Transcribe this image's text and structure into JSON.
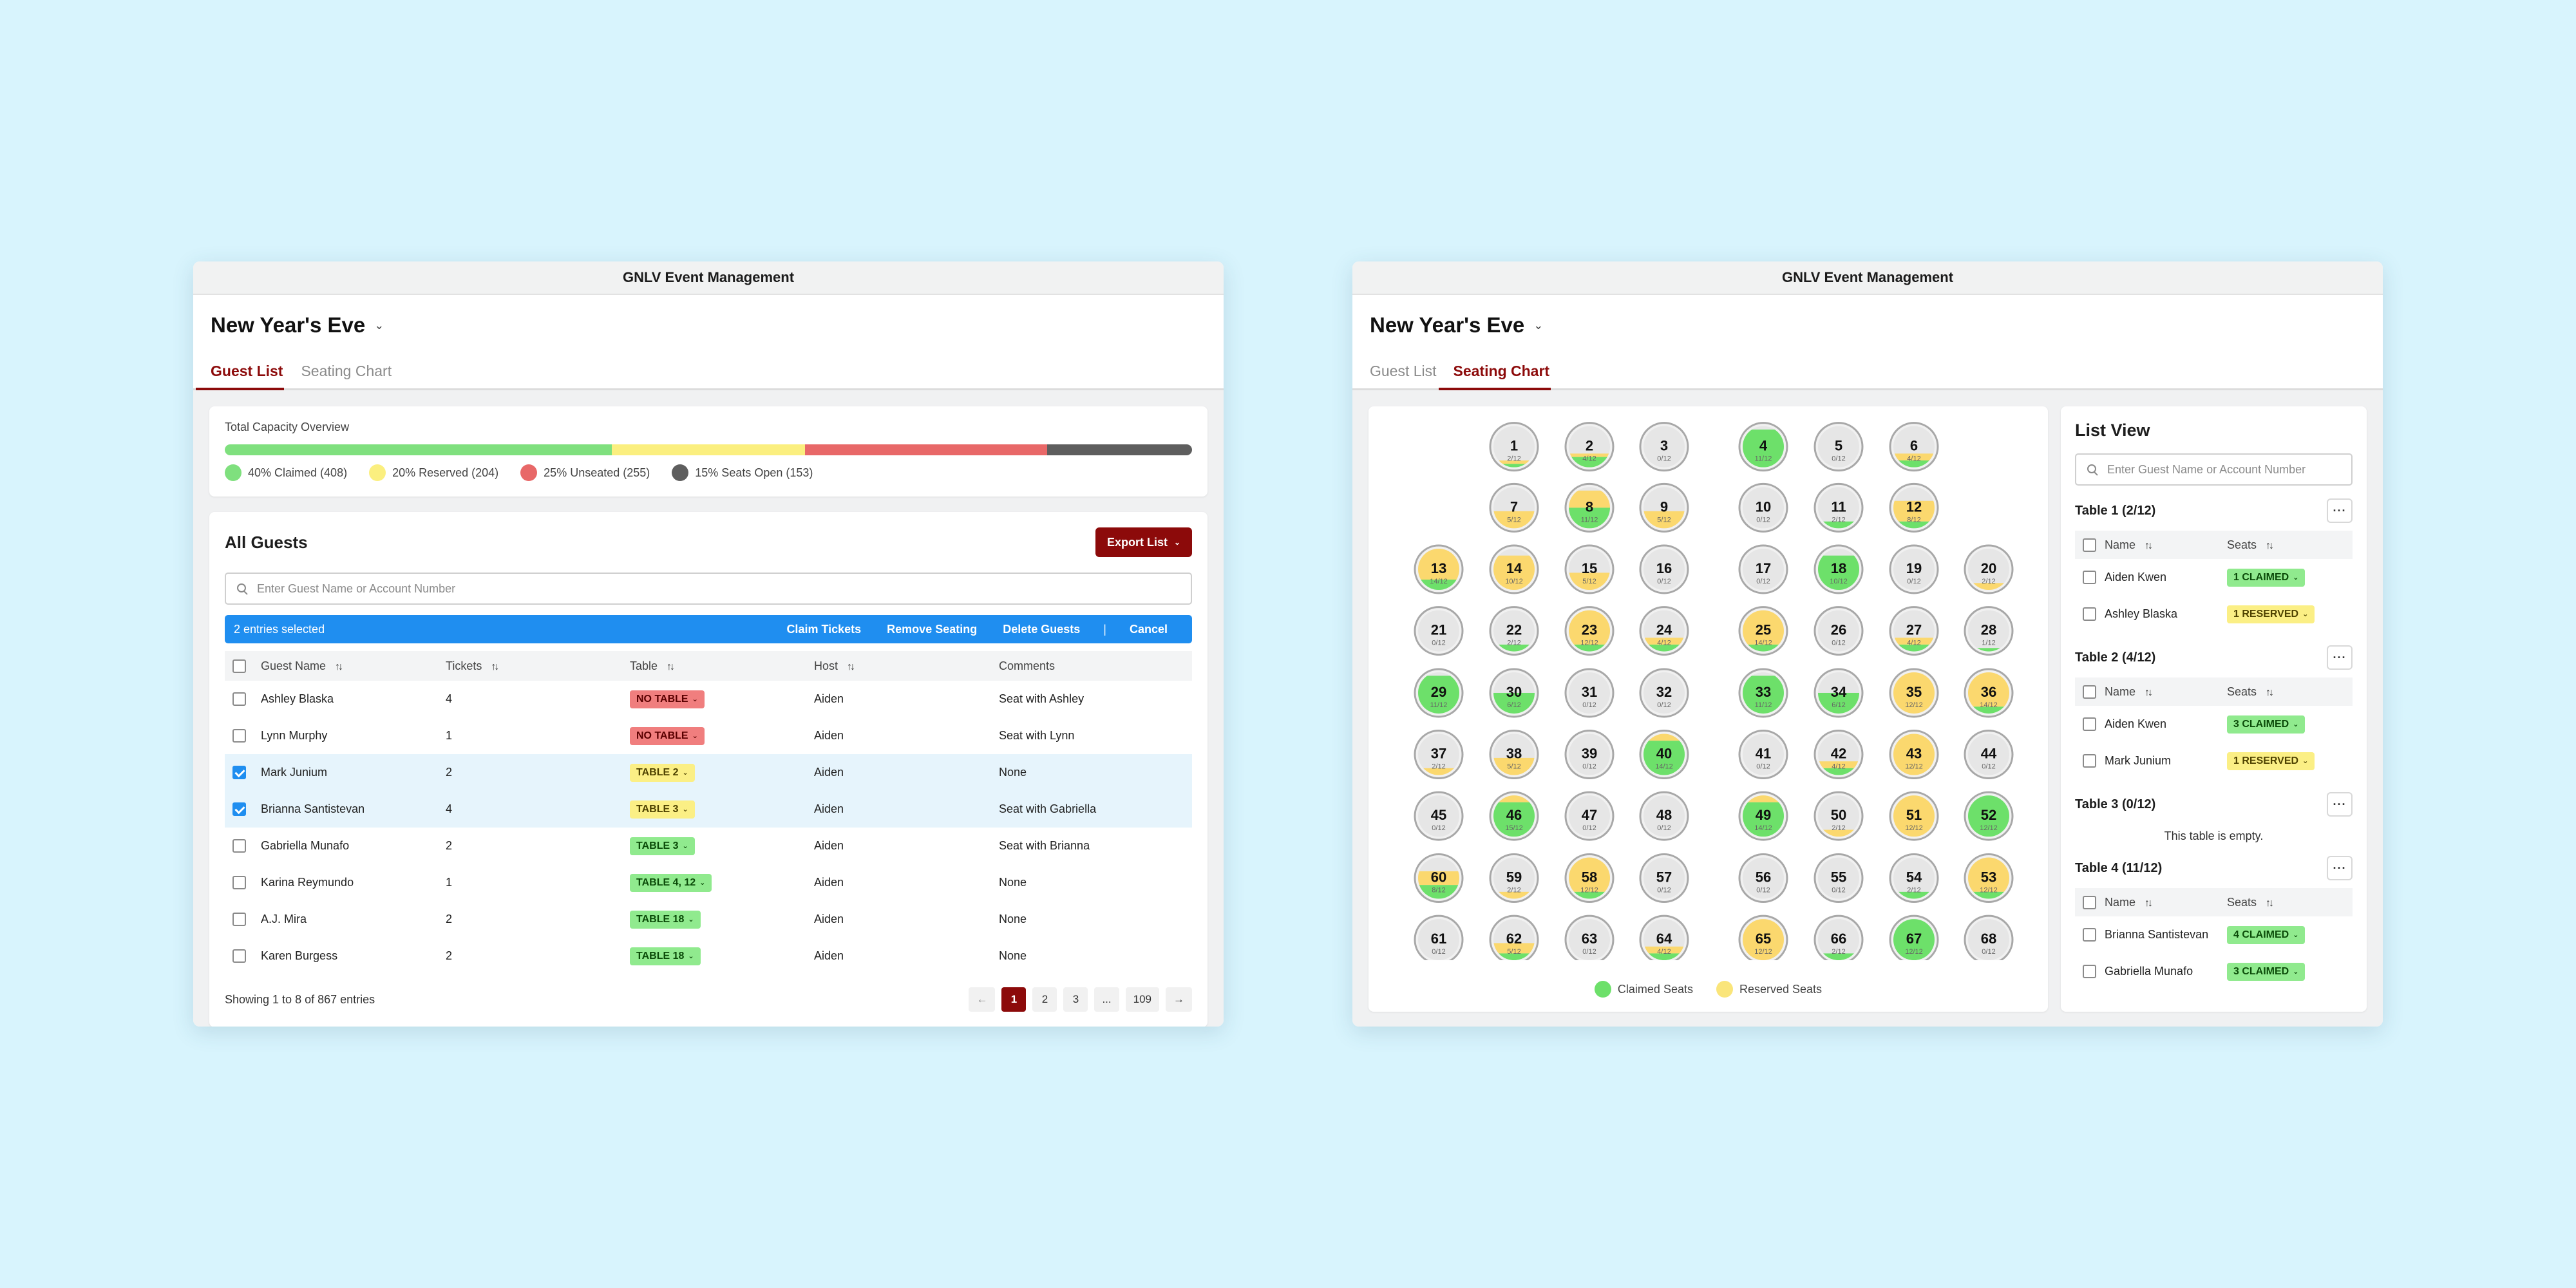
{
  "app_title": "GNLV Event Management",
  "event_name": "New Year's Eve",
  "tabs": {
    "guest_list": "Guest List",
    "seating_chart": "Seating Chart"
  },
  "colors": {
    "brand": "#8c0a0a",
    "claimed": "#6de06a",
    "reserved": "#fae57a",
    "unseated": "#e86868",
    "open": "#5e5e5e",
    "select_bar": "#1f8ef0"
  },
  "capacity": {
    "label": "Total Capacity Overview",
    "segments": [
      {
        "key": "claimed",
        "label": "40% Claimed (408)",
        "percent": 40,
        "color": "#7fe07e"
      },
      {
        "key": "reserved",
        "label": "20% Reserved (204)",
        "percent": 20,
        "color": "#fbef7f"
      },
      {
        "key": "unseated",
        "label": "25% Unseated (255)",
        "percent": 25,
        "color": "#e86868"
      },
      {
        "key": "open",
        "label": "15% Seats Open (153)",
        "percent": 15,
        "color": "#5e5e5e"
      }
    ]
  },
  "guests": {
    "title": "All Guests",
    "export_label": "Export List",
    "search_placeholder": "Enter Guest Name or Account Number",
    "selection": {
      "count_label": "2 entries selected",
      "claim": "Claim Tickets",
      "remove": "Remove Seating",
      "delete": "Delete Guests",
      "separator": "|",
      "cancel": "Cancel"
    },
    "columns": [
      "Guest Name",
      "Tickets",
      "Table",
      "Host",
      "Comments"
    ],
    "rows": [
      {
        "name": "Ashley Blaska",
        "tickets": "4",
        "table": "NO TABLE",
        "status": "red",
        "host": "Aiden",
        "comments": "Seat with Ashley",
        "checked": false
      },
      {
        "name": "Lynn Murphy",
        "tickets": "1",
        "table": "NO TABLE",
        "status": "red",
        "host": "Aiden",
        "comments": "Seat with Lynn",
        "checked": false
      },
      {
        "name": "Mark Junium",
        "tickets": "2",
        "table": "TABLE 2",
        "status": "yellow",
        "host": "Aiden",
        "comments": "None",
        "checked": true
      },
      {
        "name": "Brianna Santistevan",
        "tickets": "4",
        "table": "TABLE 3",
        "status": "yellow",
        "host": "Aiden",
        "comments": "Seat with Gabriella",
        "checked": true
      },
      {
        "name": "Gabriella Munafo",
        "tickets": "2",
        "table": "TABLE 3",
        "status": "green",
        "host": "Aiden",
        "comments": "Seat with Brianna",
        "checked": false
      },
      {
        "name": "Karina Reymundo",
        "tickets": "1",
        "table": "TABLE 4, 12",
        "status": "green",
        "host": "Aiden",
        "comments": "None",
        "checked": false
      },
      {
        "name": "A.J. Mira",
        "tickets": "2",
        "table": "TABLE 18",
        "status": "green",
        "host": "Aiden",
        "comments": "None",
        "checked": false
      },
      {
        "name": "Karen Burgess",
        "tickets": "2",
        "table": "TABLE 18",
        "status": "green",
        "host": "Aiden",
        "comments": "None",
        "checked": false
      }
    ],
    "footer": "Showing 1 to 8 of 867 entries",
    "pagination": {
      "prev": "←",
      "pages": [
        "1",
        "2",
        "3",
        "...",
        "109"
      ],
      "current": "1",
      "next": "→"
    }
  },
  "seating": {
    "legend": {
      "claimed": "Claimed Seats",
      "reserved": "Reserved Seats"
    },
    "tables": [
      {
        "n": 1,
        "claimed": 1,
        "reserved": 1
      },
      {
        "n": 2,
        "claimed": 3,
        "reserved": 1
      },
      {
        "n": 3,
        "claimed": 0,
        "reserved": 0
      },
      {
        "n": 4,
        "claimed": 11,
        "reserved": 0
      },
      {
        "n": 5,
        "claimed": 0,
        "reserved": 0
      },
      {
        "n": 6,
        "claimed": 2,
        "reserved": 2
      },
      {
        "n": 7,
        "claimed": 0,
        "reserved": 5
      },
      {
        "n": 8,
        "claimed": 6,
        "reserved": 5
      },
      {
        "n": 9,
        "claimed": 0,
        "reserved": 5
      },
      {
        "n": 10,
        "claimed": 0,
        "reserved": 0
      },
      {
        "n": 11,
        "claimed": 2,
        "reserved": 0
      },
      {
        "n": 12,
        "claimed": 2,
        "reserved": 6
      },
      {
        "n": 13,
        "claimed": 3,
        "reserved": 11
      },
      {
        "n": 14,
        "claimed": 0,
        "reserved": 10
      },
      {
        "n": 15,
        "claimed": 0,
        "reserved": 5
      },
      {
        "n": 16,
        "claimed": 0,
        "reserved": 0
      },
      {
        "n": 17,
        "claimed": 0,
        "reserved": 0
      },
      {
        "n": 18,
        "claimed": 10,
        "reserved": 0
      },
      {
        "n": 19,
        "claimed": 0,
        "reserved": 0
      },
      {
        "n": 20,
        "claimed": 0,
        "reserved": 2
      },
      {
        "n": 21,
        "claimed": 0,
        "reserved": 0
      },
      {
        "n": 22,
        "claimed": 2,
        "reserved": 0
      },
      {
        "n": 23,
        "claimed": 2,
        "reserved": 10
      },
      {
        "n": 24,
        "claimed": 2,
        "reserved": 2
      },
      {
        "n": 25,
        "claimed": 2,
        "reserved": 12
      },
      {
        "n": 26,
        "claimed": 0,
        "reserved": 0
      },
      {
        "n": 27,
        "claimed": 2,
        "reserved": 2
      },
      {
        "n": 28,
        "claimed": 1,
        "reserved": 0
      },
      {
        "n": 29,
        "claimed": 11,
        "reserved": 0
      },
      {
        "n": 30,
        "claimed": 6,
        "reserved": 0
      },
      {
        "n": 31,
        "claimed": 0,
        "reserved": 0
      },
      {
        "n": 32,
        "claimed": 0,
        "reserved": 0
      },
      {
        "n": 33,
        "claimed": 11,
        "reserved": 0
      },
      {
        "n": 34,
        "claimed": 6,
        "reserved": 0
      },
      {
        "n": 35,
        "claimed": 0,
        "reserved": 12
      },
      {
        "n": 36,
        "claimed": 2,
        "reserved": 12
      },
      {
        "n": 37,
        "claimed": 0,
        "reserved": 2
      },
      {
        "n": 38,
        "claimed": 0,
        "reserved": 5
      },
      {
        "n": 39,
        "claimed": 0,
        "reserved": 0
      },
      {
        "n": 40,
        "claimed": 10,
        "reserved": 4
      },
      {
        "n": 41,
        "claimed": 0,
        "reserved": 0
      },
      {
        "n": 42,
        "claimed": 2,
        "reserved": 2
      },
      {
        "n": 43,
        "claimed": 0,
        "reserved": 12
      },
      {
        "n": 44,
        "claimed": 0,
        "reserved": 0
      },
      {
        "n": 45,
        "claimed": 0,
        "reserved": 0
      },
      {
        "n": 46,
        "claimed": 10,
        "reserved": 5
      },
      {
        "n": 47,
        "claimed": 0,
        "reserved": 0
      },
      {
        "n": 48,
        "claimed": 0,
        "reserved": 0
      },
      {
        "n": 49,
        "claimed": 10,
        "reserved": 4
      },
      {
        "n": 50,
        "claimed": 0,
        "reserved": 2
      },
      {
        "n": 51,
        "claimed": 0,
        "reserved": 12
      },
      {
        "n": 52,
        "claimed": 12,
        "reserved": 0
      },
      {
        "n": 60,
        "claimed": 4,
        "reserved": 4
      },
      {
        "n": 59,
        "claimed": 0,
        "reserved": 2
      },
      {
        "n": 58,
        "claimed": 2,
        "reserved": 10
      },
      {
        "n": 57,
        "claimed": 0,
        "reserved": 0
      },
      {
        "n": 56,
        "claimed": 0,
        "reserved": 0
      },
      {
        "n": 55,
        "claimed": 0,
        "reserved": 0
      },
      {
        "n": 54,
        "claimed": 2,
        "reserved": 0
      },
      {
        "n": 53,
        "claimed": 2,
        "reserved": 10
      },
      {
        "n": 61,
        "claimed": 0,
        "reserved": 0
      },
      {
        "n": 62,
        "claimed": 2,
        "reserved": 3
      },
      {
        "n": 63,
        "claimed": 0,
        "reserved": 0
      },
      {
        "n": 64,
        "claimed": 2,
        "reserved": 2
      },
      {
        "n": 65,
        "claimed": 0,
        "reserved": 12
      },
      {
        "n": 66,
        "claimed": 2,
        "reserved": 0
      },
      {
        "n": 67,
        "claimed": 12,
        "reserved": 0
      },
      {
        "n": 68,
        "claimed": 0,
        "reserved": 0
      }
    ],
    "capacity_per_table": 12
  },
  "list_view": {
    "title": "List View",
    "search_placeholder": "Enter Guest Name or Account Number",
    "col_name": "Name",
    "col_seats": "Seats",
    "more_label": "···",
    "empty_label": "This table is empty.",
    "groups": [
      {
        "title": "Table 1 (2/12)",
        "rows": [
          {
            "name": "Aiden Kwen",
            "seats": "1 CLAIMED",
            "status": "green"
          },
          {
            "name": "Ashley Blaska",
            "seats": "1 RESERVED",
            "status": "yellow"
          }
        ]
      },
      {
        "title": "Table 2 (4/12)",
        "rows": [
          {
            "name": "Aiden Kwen",
            "seats": "3 CLAIMED",
            "status": "green"
          },
          {
            "name": "Mark Junium",
            "seats": "1 RESERVED",
            "status": "yellow"
          }
        ]
      },
      {
        "title": "Table 3 (0/12)",
        "rows": []
      },
      {
        "title": "Table 4 (11/12)",
        "rows": [
          {
            "name": "Brianna Santistevan",
            "seats": "4 CLAIMED",
            "status": "green"
          },
          {
            "name": "Gabriella Munafo",
            "seats": "3 CLAIMED",
            "status": "green"
          }
        ]
      }
    ]
  }
}
